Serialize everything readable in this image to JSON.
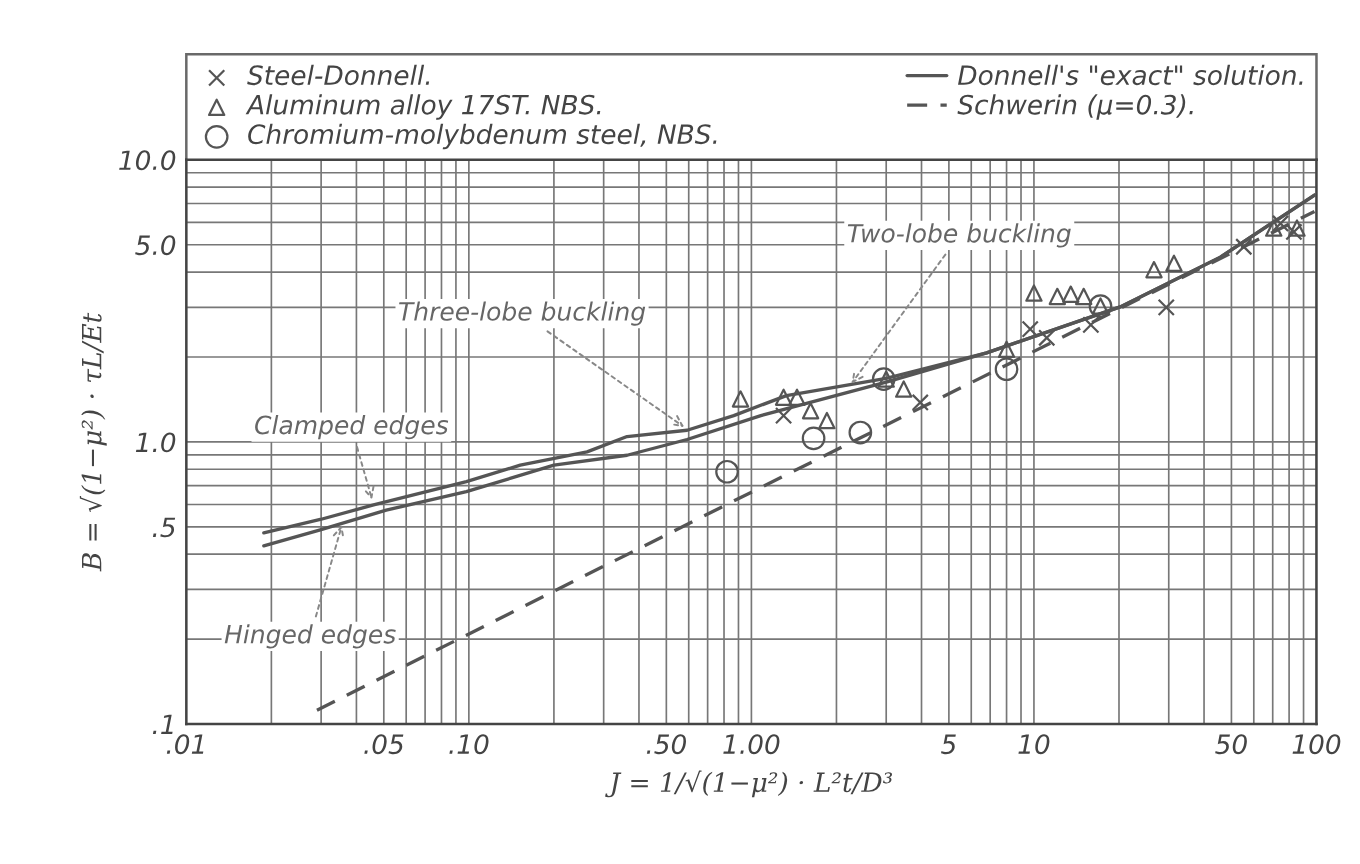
{
  "chart_data": {
    "type": "line",
    "xlabel": "J = 1/√(1−μ²) · L²t/D³",
    "ylabel": "B = √(1−μ²) · τL/Et",
    "log": "xy",
    "grid": true,
    "legend": "top",
    "xlim": [
      0.01,
      100
    ],
    "ylim": [
      0.1,
      10
    ],
    "xticks": [
      {
        "value": 0.01,
        "label": ".01"
      },
      {
        "value": 0.05,
        "label": ".05"
      },
      {
        "value": 0.1,
        "label": ".10"
      },
      {
        "value": 0.5,
        "label": ".50"
      },
      {
        "value": 1,
        "label": "1.00"
      },
      5,
      10,
      50,
      100
    ],
    "yticks": [
      {
        "value": 0.1,
        "label": ".1"
      },
      {
        "value": 0.5,
        "label": ".5"
      },
      {
        "value": 1,
        "label": "1.0"
      },
      {
        "value": 5,
        "label": "5.0"
      },
      {
        "value": 10,
        "label": "10.0"
      }
    ],
    "series": [
      {
        "name": "Steel-Donnell.",
        "type": "scatter",
        "marker": "cross",
        "color": "#555555",
        "x": [
          1.3,
          3.96,
          9.7,
          11.1,
          15.9,
          29.4,
          55.3,
          74.6,
          83.2
        ],
        "values": [
          1.24,
          1.38,
          2.51,
          2.34,
          2.6,
          3.0,
          4.92,
          5.95,
          5.55
        ]
      },
      {
        "name": "Aluminum alloy 17ST. NBS.",
        "type": "scatter",
        "marker": "triangle",
        "color": "#555555",
        "x": [
          0.915,
          1.3,
          1.45,
          1.62,
          1.85,
          3.0,
          3.46,
          8.0,
          10.0,
          12.1,
          13.5,
          15.0,
          17.2,
          26.6,
          31.3,
          70.6,
          85.3
        ],
        "values": [
          1.42,
          1.44,
          1.44,
          1.29,
          1.19,
          1.67,
          1.54,
          2.13,
          3.37,
          3.28,
          3.34,
          3.28,
          3.03,
          4.08,
          4.3,
          5.73,
          5.73
        ]
      },
      {
        "name": "Chromium-molybdenum steel, NBS.",
        "type": "scatter",
        "marker": "circle",
        "color": "#555555",
        "x": [
          0.82,
          1.66,
          2.43,
          2.94,
          8.0,
          17.2
        ],
        "values": [
          0.784,
          1.03,
          1.08,
          1.67,
          1.81,
          3.03
        ]
      },
      {
        "name": "Donnell's \"exact\" solution.",
        "line_style": "solid",
        "color": "#555555",
        "x": [
          0.0188,
          0.0298,
          0.046,
          0.098,
          0.152,
          0.262,
          0.363,
          0.592,
          0.866,
          1.33,
          3.0,
          6.8,
          20.2,
          45.7,
          98.4
        ],
        "values": [
          0.476,
          0.531,
          0.598,
          0.723,
          0.827,
          0.922,
          1.045,
          1.1,
          1.24,
          1.46,
          1.68,
          2.07,
          3.01,
          4.52,
          7.5
        ]
      },
      {
        "line_style": "solid",
        "color": "#555555",
        "x": [
          0.0188,
          0.0298,
          0.051,
          0.098,
          0.2,
          0.363,
          0.592,
          1.08,
          3.0,
          6.8,
          20.2,
          45.7,
          98.4
        ],
        "values": [
          0.428,
          0.488,
          0.573,
          0.667,
          0.827,
          0.897,
          1.02,
          1.24,
          1.63,
          2.07,
          3.01,
          4.52,
          7.5
        ]
      },
      {
        "name": "Schwerin (μ=0.3).",
        "line_style": "dashed",
        "color": "#555555",
        "x": [
          0.029,
          0.78,
          98.4
        ],
        "values": [
          0.112,
          0.586,
          6.56
        ]
      }
    ],
    "annotations": [
      {
        "text": "Clamped edges",
        "x": 0.046,
        "y": 0.598
      },
      {
        "text": "Hinged edges",
        "x": 0.036,
        "y": 0.53
      },
      {
        "text": "Three-lobe buckling",
        "x": 0.6,
        "y": 1.1
      },
      {
        "text": "Two-lobe buckling",
        "x": 2.2,
        "y": 1.55
      }
    ]
  }
}
